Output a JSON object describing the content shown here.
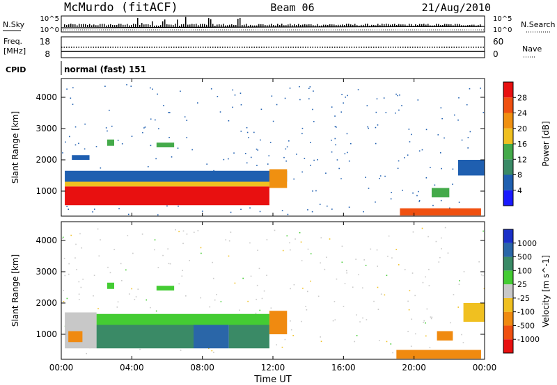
{
  "header": {
    "station": "McMurdo (fitACF)",
    "beam": "Beam 06",
    "date": "21/Aug/2010"
  },
  "status": {
    "nsky_label": "N.Sky",
    "nsky_ticks": [
      "10^5",
      "10^0"
    ],
    "nsearch_label": "N.Search",
    "nsearch_ticks": [
      "10^5",
      "10^0"
    ],
    "freq_label_1": "Freq.",
    "freq_label_2": "[MHz]",
    "freq_ticks": [
      "18",
      "8"
    ],
    "nave_label": "Nave",
    "nave_ticks": [
      "60",
      "0"
    ],
    "cpid_label": "CPID",
    "cpid_value": "normal (fast) 151"
  },
  "chart_data": [
    {
      "type": "heatmap",
      "name": "power",
      "xlabel": "",
      "ylabel": "Slant Range [km]",
      "x_ticks": [
        "00:00",
        "04:00",
        "08:00",
        "12:00",
        "16:00",
        "20:00",
        "00:00"
      ],
      "y_ticks": [
        1000,
        2000,
        3000,
        4000
      ],
      "xlim": [
        0,
        24
      ],
      "ylim": [
        200,
        4600
      ],
      "colorbar": {
        "label": "Power [dB]",
        "ticks": [
          "4",
          "8",
          "12",
          "16",
          "20",
          "24",
          "28"
        ],
        "bins": [
          0,
          4,
          8,
          12,
          16,
          20,
          24,
          28,
          32
        ],
        "colors": [
          "#1a1aff",
          "#1f5fb0",
          "#3a8a66",
          "#44aa4a",
          "#f0c020",
          "#f09010",
          "#f05010",
          "#e81010"
        ]
      },
      "regions": [
        {
          "t0": 0.2,
          "t1": 11.8,
          "r0": 550,
          "r1": 1150,
          "value": 30
        },
        {
          "t0": 0.2,
          "t1": 11.8,
          "r0": 1150,
          "r1": 1300,
          "value": 17
        },
        {
          "t0": 0.2,
          "t1": 12.8,
          "r0": 1300,
          "r1": 1650,
          "value": 6
        },
        {
          "t0": 0.6,
          "t1": 1.6,
          "r0": 2000,
          "r1": 2150,
          "value": 6
        },
        {
          "t0": 2.6,
          "t1": 3.0,
          "r0": 2450,
          "r1": 2650,
          "value": 13
        },
        {
          "t0": 5.4,
          "t1": 6.4,
          "r0": 2400,
          "r1": 2550,
          "value": 13
        },
        {
          "t0": 11.8,
          "t1": 12.8,
          "r0": 1100,
          "r1": 1700,
          "value": 21
        },
        {
          "t0": 19.2,
          "t1": 23.8,
          "r0": 220,
          "r1": 450,
          "value": 26
        },
        {
          "t0": 21.0,
          "t1": 22.0,
          "r0": 800,
          "r1": 1100,
          "value": 14
        },
        {
          "t0": 22.5,
          "t1": 24.0,
          "r0": 1500,
          "r1": 2000,
          "value": 6
        }
      ]
    },
    {
      "type": "heatmap",
      "name": "velocity",
      "xlabel": "Time UT",
      "ylabel": "Slant Range [km]",
      "x_ticks": [
        "00:00",
        "04:00",
        "08:00",
        "12:00",
        "16:00",
        "20:00",
        "00:00"
      ],
      "y_ticks": [
        1000,
        2000,
        3000,
        4000
      ],
      "xlim": [
        0,
        24
      ],
      "ylim": [
        200,
        4600
      ],
      "colorbar": {
        "label": "Velocity [m s^-1]",
        "ticks": [
          "1000",
          "500",
          "100",
          "25",
          "-25",
          "-100",
          "-500",
          "-1000"
        ],
        "bins": [
          -1200,
          -1000,
          -500,
          -100,
          -25,
          25,
          100,
          500,
          1000,
          1200
        ],
        "colors": [
          "#e81010",
          "#f05010",
          "#f08a10",
          "#f0c020",
          "#c8c8c8",
          "#44cc33",
          "#3a8a66",
          "#2a66a8",
          "#1a30c8"
        ]
      },
      "regions": [
        {
          "t0": 0.2,
          "t1": 2.0,
          "r0": 550,
          "r1": 1700,
          "value": 0
        },
        {
          "t0": 0.4,
          "t1": 1.2,
          "r0": 750,
          "r1": 1100,
          "value": -200
        },
        {
          "t0": 2.0,
          "t1": 7.5,
          "r0": 550,
          "r1": 1300,
          "value": 300
        },
        {
          "t0": 2.0,
          "t1": 11.8,
          "r0": 1300,
          "r1": 1650,
          "value": 60
        },
        {
          "t0": 7.5,
          "t1": 9.5,
          "r0": 550,
          "r1": 1300,
          "value": 700
        },
        {
          "t0": 9.5,
          "t1": 11.8,
          "r0": 550,
          "r1": 1300,
          "value": 300
        },
        {
          "t0": 2.6,
          "t1": 3.0,
          "r0": 2450,
          "r1": 2650,
          "value": 60
        },
        {
          "t0": 5.4,
          "t1": 6.4,
          "r0": 2400,
          "r1": 2550,
          "value": 60
        },
        {
          "t0": 11.8,
          "t1": 12.8,
          "r0": 1000,
          "r1": 1750,
          "value": -150
        },
        {
          "t0": 19.0,
          "t1": 23.8,
          "r0": 220,
          "r1": 500,
          "value": -300
        },
        {
          "t0": 21.3,
          "t1": 22.2,
          "r0": 800,
          "r1": 1100,
          "value": -150
        },
        {
          "t0": 22.8,
          "t1": 24.0,
          "r0": 1400,
          "r1": 2000,
          "value": -60
        }
      ]
    }
  ]
}
